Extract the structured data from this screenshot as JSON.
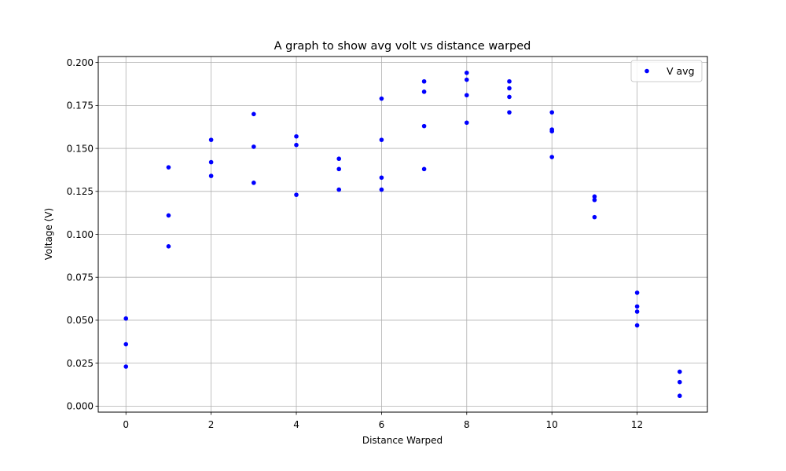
{
  "chart_data": {
    "type": "scatter",
    "title": "A graph to show avg volt vs distance warped",
    "xlabel": "Distance Warped",
    "ylabel": "Voltage (V)",
    "xlim": [
      -0.65,
      13.65
    ],
    "ylim": [
      -0.0035,
      0.2035
    ],
    "xticks": [
      0,
      2,
      4,
      6,
      8,
      10,
      12
    ],
    "xtick_labels": [
      "0",
      "2",
      "4",
      "6",
      "8",
      "10",
      "12"
    ],
    "yticks": [
      0.0,
      0.025,
      0.05,
      0.075,
      0.1,
      0.125,
      0.15,
      0.175,
      0.2
    ],
    "ytick_labels": [
      "0.000",
      "0.025",
      "0.050",
      "0.075",
      "0.100",
      "0.125",
      "0.150",
      "0.175",
      "0.200"
    ],
    "grid": true,
    "legend_position": "top-right",
    "series": [
      {
        "name": "V avg",
        "color": "#0000ff",
        "points": [
          {
            "x": 0,
            "y": 0.051
          },
          {
            "x": 0,
            "y": 0.036
          },
          {
            "x": 0,
            "y": 0.023
          },
          {
            "x": 1,
            "y": 0.139
          },
          {
            "x": 1,
            "y": 0.111
          },
          {
            "x": 1,
            "y": 0.093
          },
          {
            "x": 2,
            "y": 0.155
          },
          {
            "x": 2,
            "y": 0.142
          },
          {
            "x": 2,
            "y": 0.134
          },
          {
            "x": 3,
            "y": 0.17
          },
          {
            "x": 3,
            "y": 0.151
          },
          {
            "x": 3,
            "y": 0.13
          },
          {
            "x": 4,
            "y": 0.157
          },
          {
            "x": 4,
            "y": 0.152
          },
          {
            "x": 4,
            "y": 0.123
          },
          {
            "x": 5,
            "y": 0.144
          },
          {
            "x": 5,
            "y": 0.138
          },
          {
            "x": 5,
            "y": 0.126
          },
          {
            "x": 6,
            "y": 0.179
          },
          {
            "x": 6,
            "y": 0.155
          },
          {
            "x": 6,
            "y": 0.133
          },
          {
            "x": 6,
            "y": 0.126
          },
          {
            "x": 7,
            "y": 0.189
          },
          {
            "x": 7,
            "y": 0.183
          },
          {
            "x": 7,
            "y": 0.163
          },
          {
            "x": 7,
            "y": 0.138
          },
          {
            "x": 8,
            "y": 0.194
          },
          {
            "x": 8,
            "y": 0.19
          },
          {
            "x": 8,
            "y": 0.181
          },
          {
            "x": 8,
            "y": 0.165
          },
          {
            "x": 9,
            "y": 0.189
          },
          {
            "x": 9,
            "y": 0.185
          },
          {
            "x": 9,
            "y": 0.18
          },
          {
            "x": 9,
            "y": 0.171
          },
          {
            "x": 10,
            "y": 0.171
          },
          {
            "x": 10,
            "y": 0.161
          },
          {
            "x": 10,
            "y": 0.16
          },
          {
            "x": 10,
            "y": 0.145
          },
          {
            "x": 11,
            "y": 0.122
          },
          {
            "x": 11,
            "y": 0.12
          },
          {
            "x": 11,
            "y": 0.11
          },
          {
            "x": 12,
            "y": 0.066
          },
          {
            "x": 12,
            "y": 0.058
          },
          {
            "x": 12,
            "y": 0.055
          },
          {
            "x": 12,
            "y": 0.047
          },
          {
            "x": 13,
            "y": 0.02
          },
          {
            "x": 13,
            "y": 0.014
          },
          {
            "x": 13,
            "y": 0.006
          }
        ]
      }
    ]
  }
}
